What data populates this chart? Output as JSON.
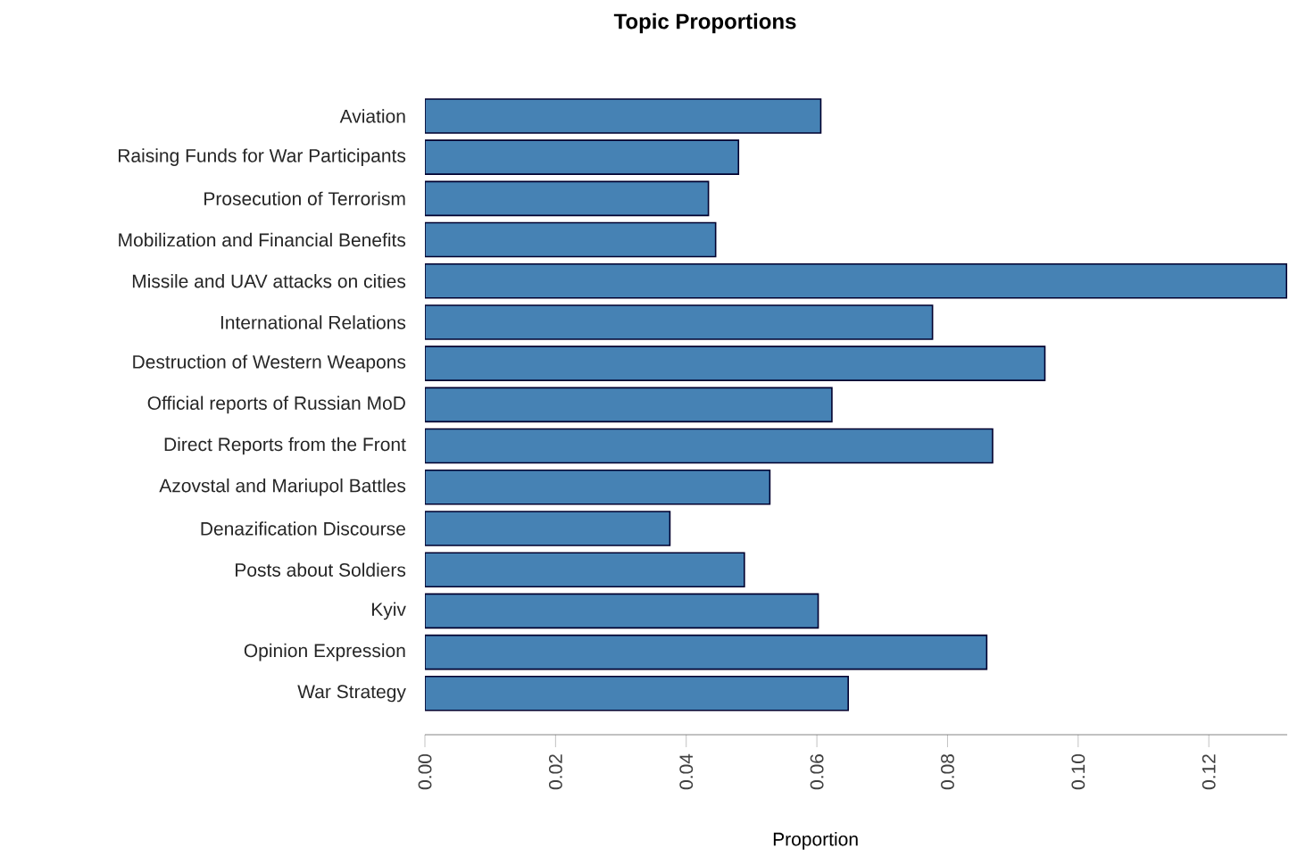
{
  "chart_data": {
    "type": "bar",
    "orientation": "horizontal",
    "title": "Topic Proportions",
    "xlabel": "Proportion",
    "categories": [
      "Aviation",
      "Raising Funds for War Participants",
      "Prosecution of Terrorism",
      "Mobilization and Financial Benefits",
      "Missile and UAV attacks on cities",
      "International Relations",
      "Destruction of Western Weapons",
      "Official reports of Russian MoD",
      "Direct Reports from the Front",
      "Azovstal and Mariupol Battles",
      "Denazification Discourse",
      "Posts about Soldiers",
      "Kyiv",
      "Opinion Expression",
      "War Strategy"
    ],
    "values": [
      0.0606,
      0.048,
      0.0434,
      0.0445,
      0.1319,
      0.0777,
      0.0949,
      0.0623,
      0.0869,
      0.0528,
      0.0375,
      0.0489,
      0.0602,
      0.086,
      0.0648
    ],
    "color": "#4682b4",
    "xlim": [
      0,
      0.132
    ],
    "xticks": [
      {
        "value": 0,
        "label": "0.00"
      },
      {
        "value": 0.02,
        "label": "0.02"
      },
      {
        "value": 0.04,
        "label": "0.04"
      },
      {
        "value": 0.06,
        "label": "0.06"
      },
      {
        "value": 0.08,
        "label": "0.08"
      },
      {
        "value": 0.1,
        "label": "0.10"
      },
      {
        "value": 0.12,
        "label": "0.12"
      }
    ]
  }
}
